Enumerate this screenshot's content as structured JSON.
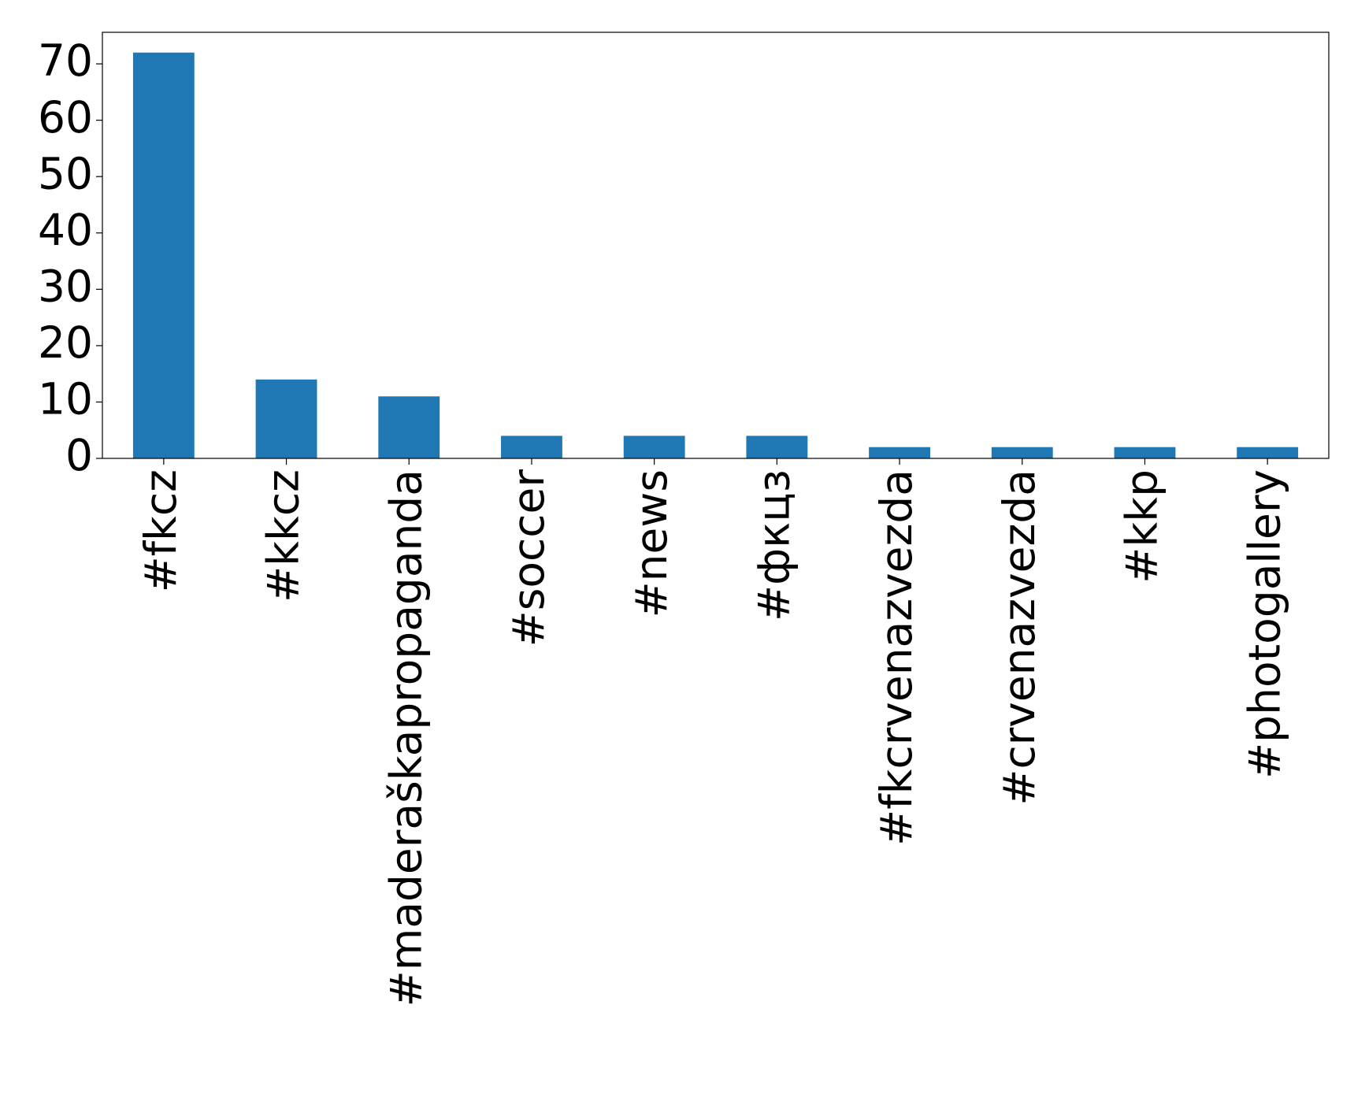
{
  "chart_data": {
    "type": "bar",
    "categories": [
      "#fkcz",
      "#kkcz",
      "#maderaškapropaganda",
      "#soccer",
      "#news",
      "#фкцз",
      "#fkcrvenazvezda",
      "#crvenazvezda",
      "#kkp",
      "#photogallery"
    ],
    "values": [
      72,
      14,
      11,
      4,
      4,
      4,
      2,
      2,
      2,
      2
    ],
    "color": "#1f77b4",
    "ylim": [
      0,
      75.6
    ],
    "yticks": [
      0,
      10,
      20,
      30,
      40,
      50,
      60,
      70
    ],
    "grid": false
  }
}
